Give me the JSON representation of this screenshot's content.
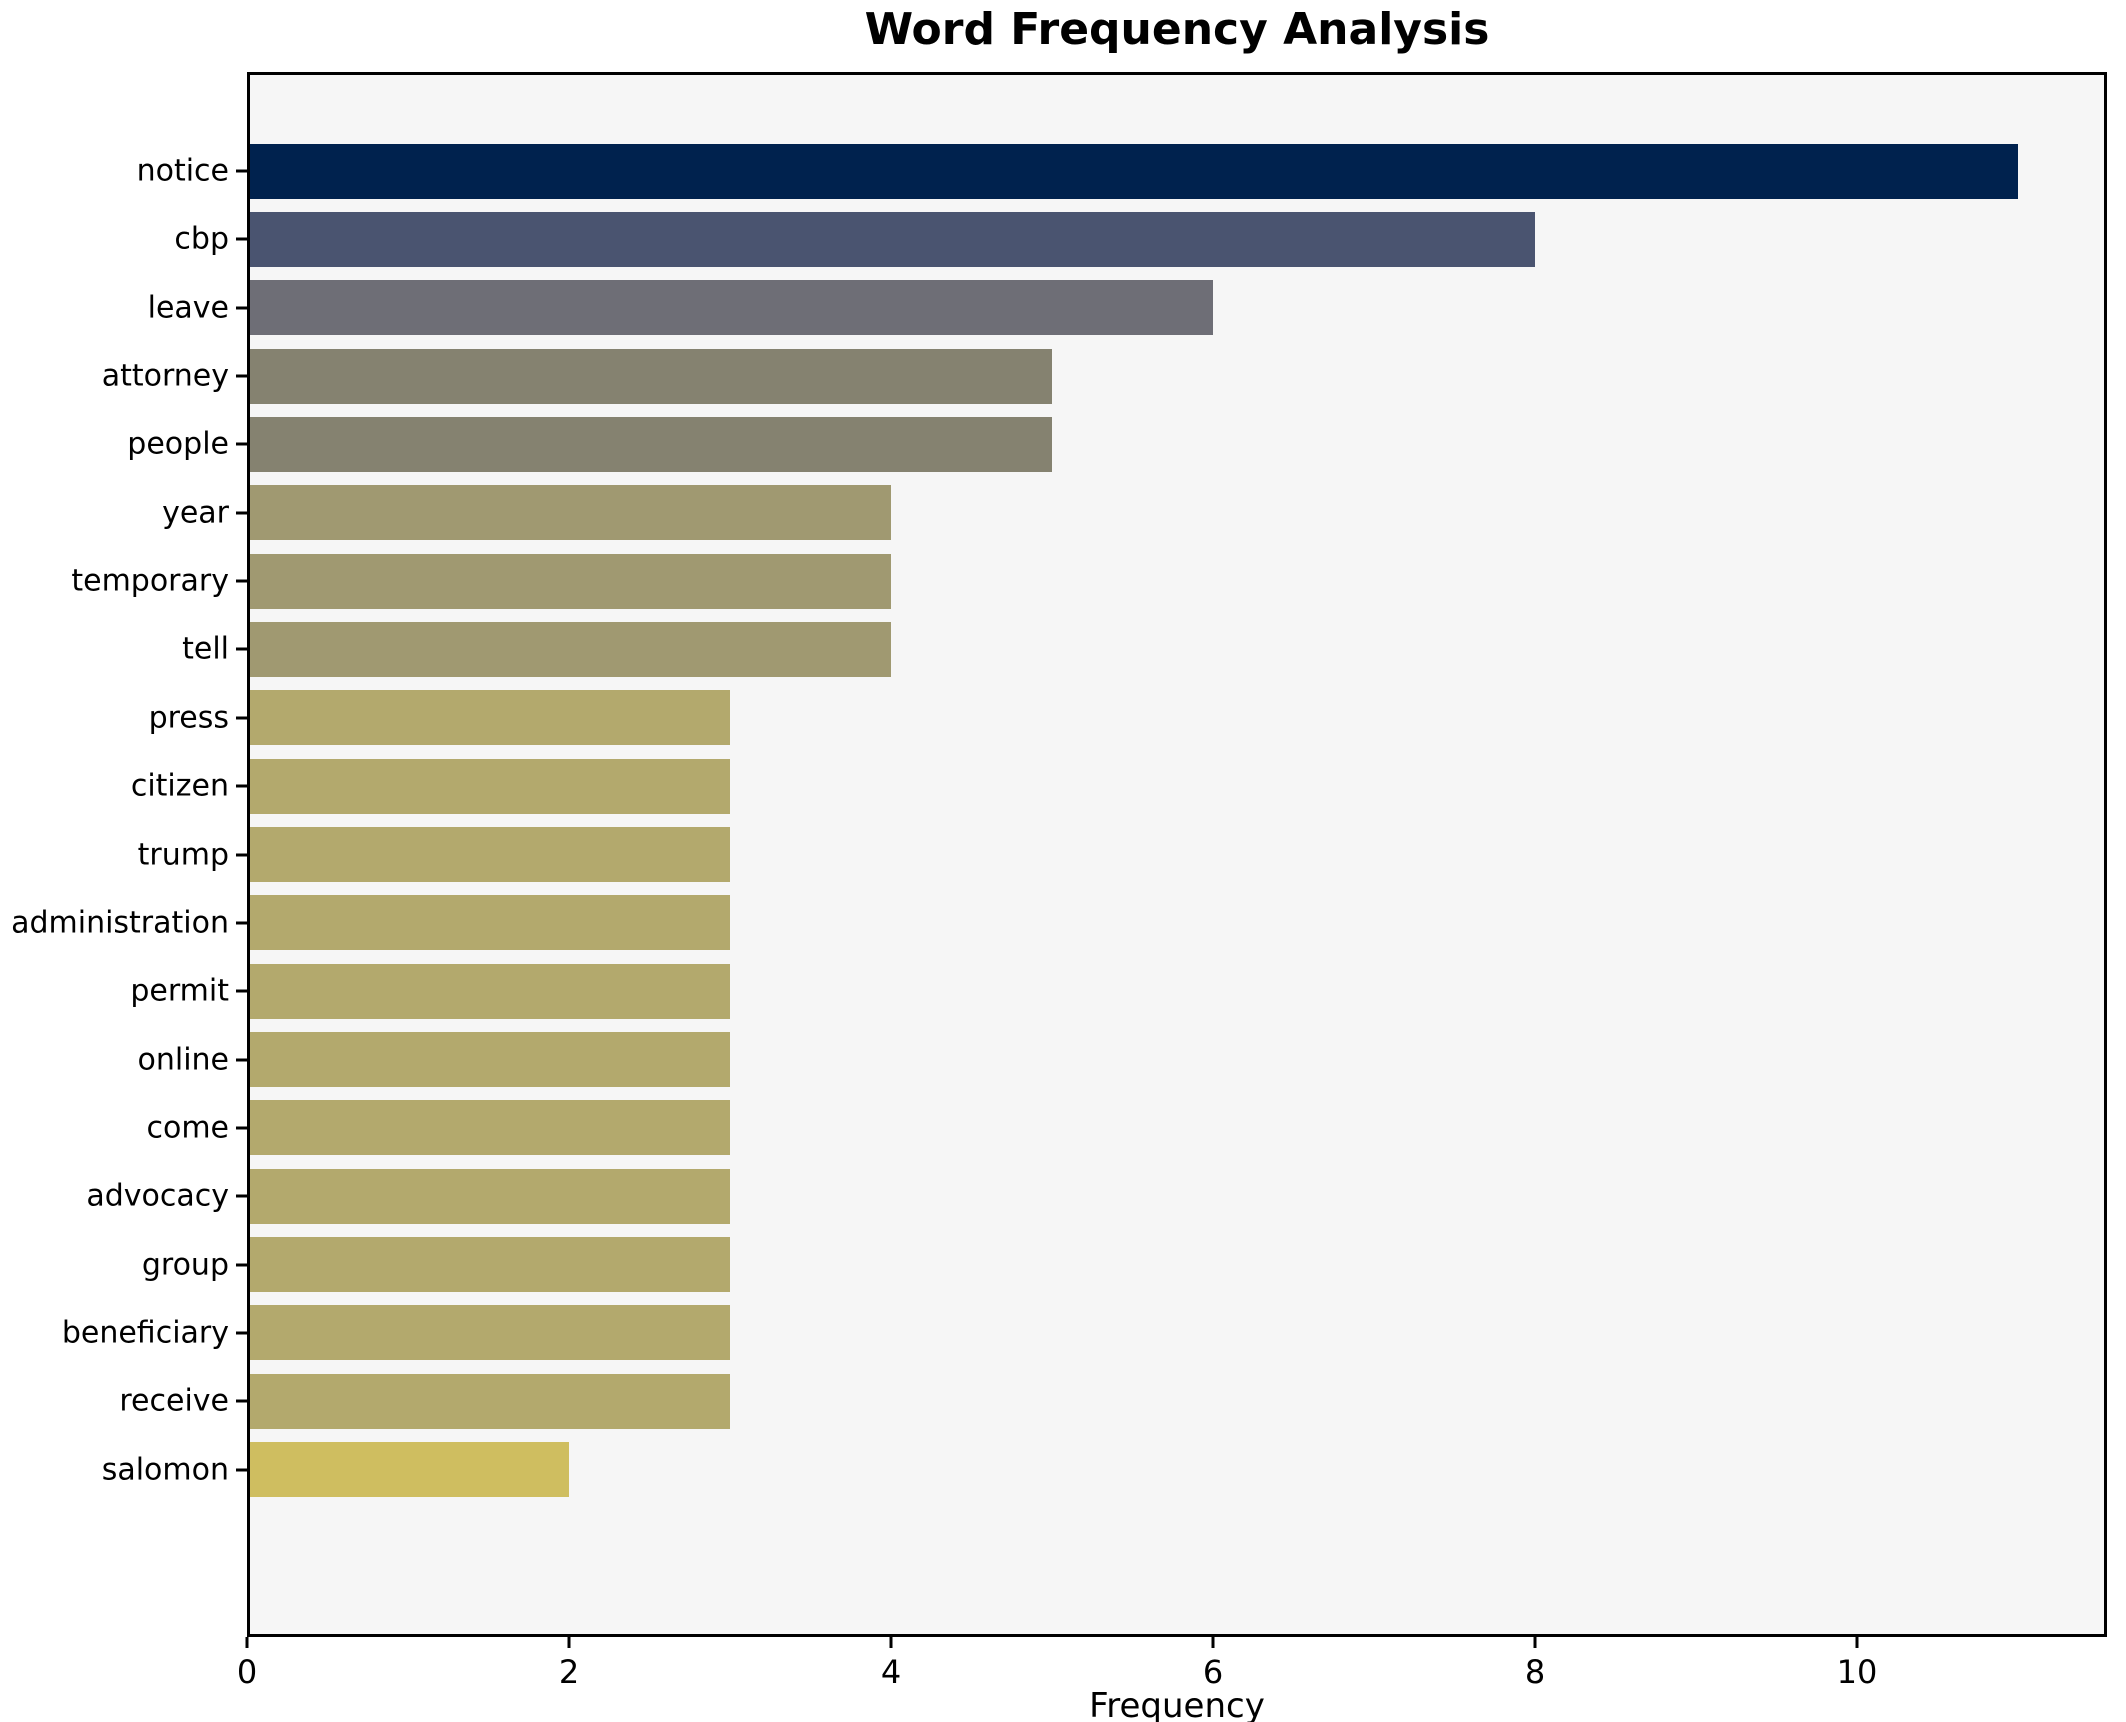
{
  "title": "Word Frequency Analysis",
  "chart_data": {
    "type": "bar",
    "orientation": "horizontal",
    "title": "Word Frequency Analysis",
    "xlabel": "Frequency",
    "ylabel": "",
    "categories": [
      "notice",
      "cbp",
      "leave",
      "attorney",
      "people",
      "year",
      "temporary",
      "tell",
      "press",
      "citizen",
      "trump",
      "administration",
      "permit",
      "online",
      "come",
      "advocacy",
      "group",
      "beneficiary",
      "receive",
      "salomon"
    ],
    "values": [
      11,
      8,
      6,
      5,
      5,
      4,
      4,
      4,
      3,
      3,
      3,
      3,
      3,
      3,
      3,
      3,
      3,
      3,
      3,
      2
    ],
    "bar_colors": [
      "#00224e",
      "#4a5470",
      "#6e6e76",
      "#858270",
      "#858270",
      "#a09971",
      "#a09971",
      "#a09971",
      "#b3a96d",
      "#b3a96d",
      "#b3a96d",
      "#b3a96d",
      "#b3a96d",
      "#b3a96d",
      "#b3a96d",
      "#b3a96d",
      "#b3a96d",
      "#b3a96d",
      "#b3a96d",
      "#cfbe60"
    ],
    "x_ticks": [
      "0",
      "2",
      "4",
      "6",
      "8",
      "10"
    ],
    "x_tick_values": [
      0,
      2,
      4,
      6,
      8,
      10
    ],
    "xlim": [
      0,
      11.55
    ],
    "grid": false,
    "legend": null,
    "colors": {
      "axes_background": "#f6f6f6",
      "figure_background": "#ffffff",
      "spine": "#000000",
      "text": "#000000"
    }
  }
}
